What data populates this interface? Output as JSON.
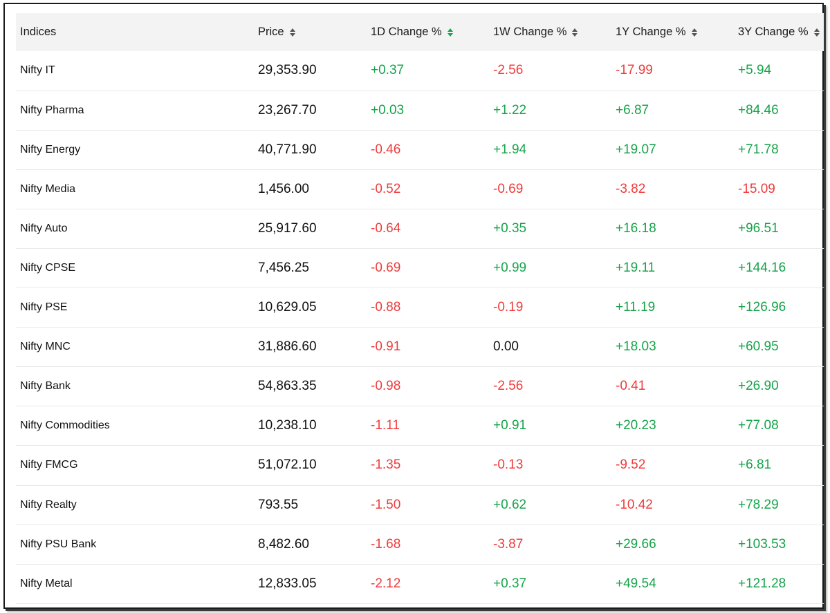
{
  "table": {
    "headers": [
      {
        "label": "Indices",
        "sortable": false
      },
      {
        "label": "Price",
        "sortable": true
      },
      {
        "label": "1D Change %",
        "sortable": true,
        "active": true
      },
      {
        "label": "1W Change %",
        "sortable": true
      },
      {
        "label": "1Y Change %",
        "sortable": true
      },
      {
        "label": "3Y Change %",
        "sortable": true
      }
    ],
    "rows": [
      {
        "name": "Nifty IT",
        "price": "29,353.90",
        "d1": "+0.37",
        "w1": "-2.56",
        "y1": "-17.99",
        "y3": "+5.94"
      },
      {
        "name": "Nifty Pharma",
        "price": "23,267.70",
        "d1": "+0.03",
        "w1": "+1.22",
        "y1": "+6.87",
        "y3": "+84.46"
      },
      {
        "name": "Nifty Energy",
        "price": "40,771.90",
        "d1": "-0.46",
        "w1": "+1.94",
        "y1": "+19.07",
        "y3": "+71.78"
      },
      {
        "name": "Nifty Media",
        "price": "1,456.00",
        "d1": "-0.52",
        "w1": "-0.69",
        "y1": "-3.82",
        "y3": "-15.09"
      },
      {
        "name": "Nifty Auto",
        "price": "25,917.60",
        "d1": "-0.64",
        "w1": "+0.35",
        "y1": "+16.18",
        "y3": "+96.51"
      },
      {
        "name": "Nifty CPSE",
        "price": "7,456.25",
        "d1": "-0.69",
        "w1": "+0.99",
        "y1": "+19.11",
        "y3": "+144.16"
      },
      {
        "name": "Nifty PSE",
        "price": "10,629.05",
        "d1": "-0.88",
        "w1": "-0.19",
        "y1": "+11.19",
        "y3": "+126.96"
      },
      {
        "name": "Nifty MNC",
        "price": "31,886.60",
        "d1": "-0.91",
        "w1": "0.00",
        "y1": "+18.03",
        "y3": "+60.95"
      },
      {
        "name": "Nifty Bank",
        "price": "54,863.35",
        "d1": "-0.98",
        "w1": "-2.56",
        "y1": "-0.41",
        "y3": "+26.90"
      },
      {
        "name": "Nifty Commodities",
        "price": "10,238.10",
        "d1": "-1.11",
        "w1": "+0.91",
        "y1": "+20.23",
        "y3": "+77.08"
      },
      {
        "name": "Nifty FMCG",
        "price": "51,072.10",
        "d1": "-1.35",
        "w1": "-0.13",
        "y1": "-9.52",
        "y3": "+6.81"
      },
      {
        "name": "Nifty Realty",
        "price": "793.55",
        "d1": "-1.50",
        "w1": "+0.62",
        "y1": "-10.42",
        "y3": "+78.29"
      },
      {
        "name": "Nifty PSU Bank",
        "price": "8,482.60",
        "d1": "-1.68",
        "w1": "-3.87",
        "y1": "+29.66",
        "y3": "+103.53"
      },
      {
        "name": "Nifty Metal",
        "price": "12,833.05",
        "d1": "-2.12",
        "w1": "+0.37",
        "y1": "+49.54",
        "y3": "+121.28"
      }
    ]
  },
  "colors": {
    "positive": "#16a34a",
    "negative": "#ef3b3b",
    "header_bg": "#f3f3f3"
  },
  "icons": {
    "sort": "sort-toggle-icon"
  }
}
